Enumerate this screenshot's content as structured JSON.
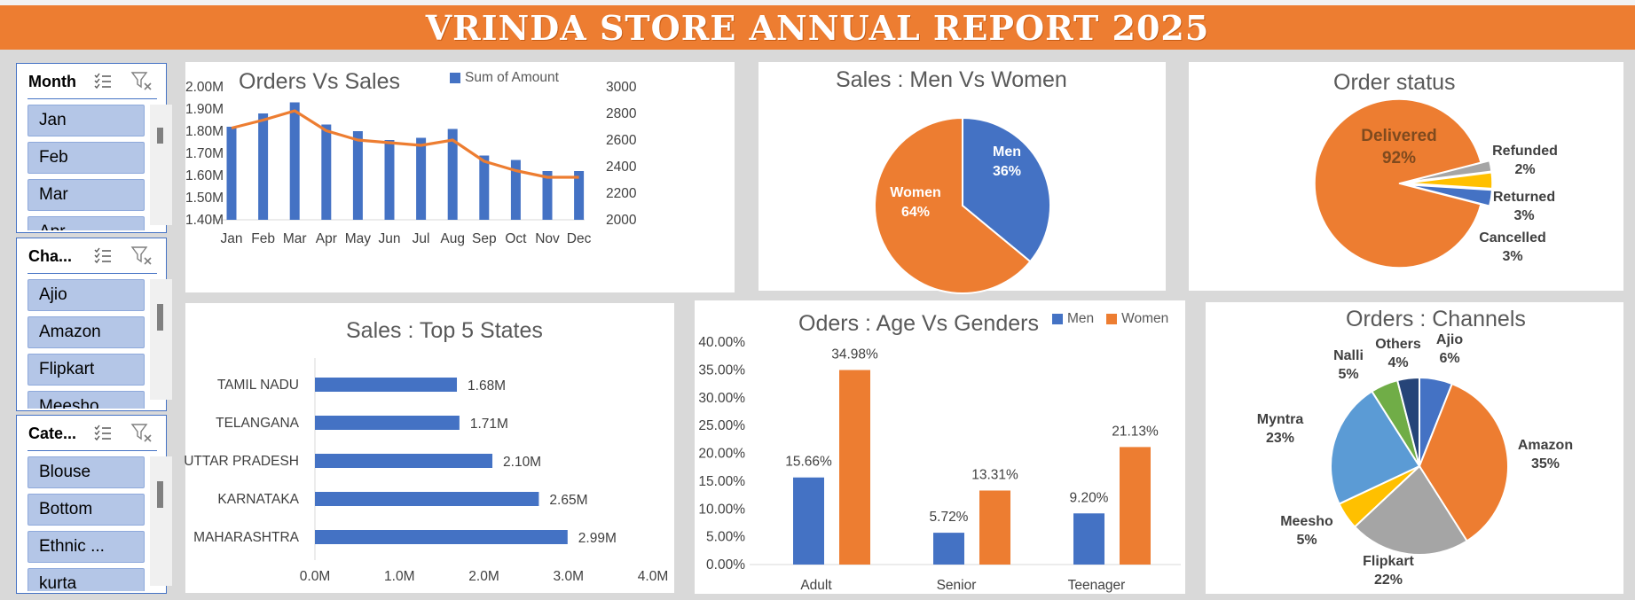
{
  "header": {
    "title": "VRINDA STORE ANNUAL REPORT 2025"
  },
  "colors": {
    "accent": "#ed7d31",
    "blue": "#4472c4",
    "orange": "#ed7d31",
    "gray": "#a5a5a5",
    "yellow": "#ffc000",
    "lightblue": "#5b9bd5",
    "green": "#70ad47",
    "navy": "#264478",
    "slicer_item": "#b4c6e7"
  },
  "slicers": [
    {
      "title": "Month",
      "items": [
        "Jan",
        "Feb",
        "Mar",
        "Apr"
      ]
    },
    {
      "title": "Cha...",
      "items": [
        "Ajio",
        "Amazon",
        "Flipkart",
        "Meesho"
      ]
    },
    {
      "title": "Cate...",
      "items": [
        "Blouse",
        "Bottom",
        "Ethnic ...",
        "kurta"
      ]
    }
  ],
  "slicer_icons": {
    "multi_select": "multi-select-icon",
    "clear_filter": "clear-filter-icon"
  },
  "orders_vs_sales": {
    "title": "Orders Vs Sales",
    "legend": "Sum of Amount",
    "chart_data": {
      "type": "bar",
      "categories": [
        "Jan",
        "Feb",
        "Mar",
        "Apr",
        "May",
        "Jun",
        "Jul",
        "Aug",
        "Sep",
        "Oct",
        "Nov",
        "Dec"
      ],
      "series": [
        {
          "name": "Sum of Amount",
          "type": "bar",
          "values": [
            1.82,
            1.88,
            1.93,
            1.83,
            1.8,
            1.76,
            1.77,
            1.81,
            1.69,
            1.67,
            1.62,
            1.62
          ]
        },
        {
          "type": "line",
          "axis": "secondary",
          "values": [
            2690,
            2750,
            2820,
            2670,
            2600,
            2580,
            2560,
            2600,
            2440,
            2370,
            2320,
            2320
          ]
        }
      ],
      "y_ticks": [
        "1.40M",
        "1.50M",
        "1.60M",
        "1.70M",
        "1.80M",
        "1.90M",
        "2.00M"
      ],
      "ylim": [
        1.4,
        2.0
      ],
      "y2_ticks": [
        "2000",
        "2200",
        "2400",
        "2600",
        "2800",
        "3000"
      ],
      "y2lim": [
        2000,
        3000
      ]
    }
  },
  "sales_gender": {
    "title": "Sales : Men Vs Women",
    "chart_data": {
      "type": "pie",
      "slices": [
        {
          "name": "Men",
          "label": "36%",
          "value": 36
        },
        {
          "name": "Women",
          "label": "64%",
          "value": 64
        }
      ]
    }
  },
  "order_status": {
    "title": "Order status",
    "chart_data": {
      "type": "pie",
      "slices": [
        {
          "name": "Delivered",
          "label": "92%",
          "value": 92
        },
        {
          "name": "Refunded",
          "label": "2%",
          "value": 2
        },
        {
          "name": "Returned",
          "label": "3%",
          "value": 3
        },
        {
          "name": "Cancelled",
          "label": "3%",
          "value": 3
        }
      ]
    }
  },
  "top_states": {
    "title": "Sales : Top 5 States",
    "chart_data": {
      "type": "bar",
      "orientation": "horizontal",
      "categories": [
        "TAMIL NADU",
        "TELANGANA",
        "UTTAR PRADESH",
        "KARNATAKA",
        "MAHARASHTRA"
      ],
      "values": [
        1.68,
        1.71,
        2.1,
        2.65,
        2.99
      ],
      "value_labels": [
        "1.68M",
        "1.71M",
        "2.10M",
        "2.65M",
        "2.99M"
      ],
      "x_ticks": [
        "0.0M",
        "1.0M",
        "2.0M",
        "3.0M",
        "4.0M"
      ],
      "xlim": [
        0,
        4
      ]
    }
  },
  "age_gender": {
    "title": "Oders : Age Vs Genders",
    "chart_data": {
      "type": "bar",
      "categories": [
        "Adult",
        "Senior",
        "Teenager"
      ],
      "series": [
        {
          "name": "Men",
          "values": [
            15.66,
            5.72,
            9.2
          ],
          "labels": [
            "15.66%",
            "5.72%",
            "9.20%"
          ]
        },
        {
          "name": "Women",
          "values": [
            34.98,
            13.31,
            21.13
          ],
          "labels": [
            "34.98%",
            "13.31%",
            "21.13%"
          ]
        }
      ],
      "y_ticks": [
        "0.00%",
        "5.00%",
        "10.00%",
        "15.00%",
        "20.00%",
        "25.00%",
        "30.00%",
        "35.00%",
        "40.00%"
      ],
      "ylim": [
        0,
        40
      ]
    }
  },
  "channels": {
    "title": "Orders : Channels",
    "chart_data": {
      "type": "pie",
      "slices": [
        {
          "name": "Ajio",
          "label": "6%",
          "value": 6
        },
        {
          "name": "Amazon",
          "label": "35%",
          "value": 35
        },
        {
          "name": "Flipkart",
          "label": "22%",
          "value": 22
        },
        {
          "name": "Meesho",
          "label": "5%",
          "value": 5
        },
        {
          "name": "Myntra",
          "label": "23%",
          "value": 23
        },
        {
          "name": "Nalli",
          "label": "5%",
          "value": 5
        },
        {
          "name": "Others",
          "label": "4%",
          "value": 4
        }
      ]
    }
  }
}
